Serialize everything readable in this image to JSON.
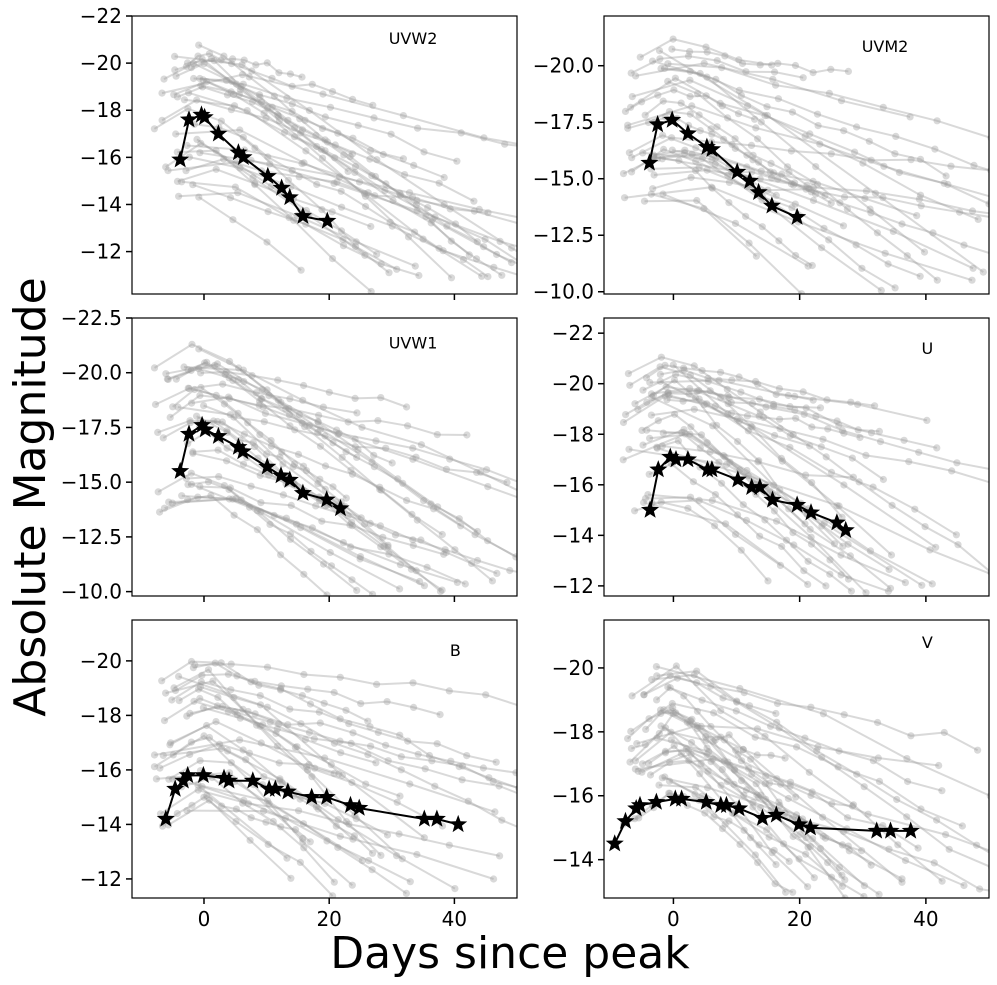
{
  "figure": {
    "ylabel": "Absolute Magnitude",
    "xlabel": "Days since peak"
  },
  "colors": {
    "background_curves": "#9a9a9a",
    "highlight": "#000000",
    "axes": "#000000"
  },
  "chart_data": [
    {
      "type": "line",
      "band": "UVW2",
      "xlim": [
        -11.5,
        50
      ],
      "ylim": [
        -22,
        -10.2
      ],
      "yticks": [
        -22,
        -20,
        -18,
        -16,
        -14,
        -12
      ],
      "ytick_labels": [
        "−22",
        "−20",
        "−18",
        "−16",
        "−14",
        "−12"
      ],
      "xticks": [
        0,
        20,
        40
      ],
      "xtick_labels": [],
      "highlight": {
        "x": [
          -3.8,
          -2.4,
          -0.4,
          0.1,
          2.3,
          5.5,
          6.3,
          10.2,
          12.4,
          13.7,
          15.8,
          19.7
        ],
        "y": [
          -15.9,
          -17.6,
          -17.8,
          -17.7,
          -17.0,
          -16.2,
          -16.0,
          -15.2,
          -14.7,
          -14.3,
          -13.5,
          -13.3
        ]
      }
    },
    {
      "type": "line",
      "band": "UVM2",
      "xlim": [
        -11,
        50
      ],
      "ylim": [
        -22.2,
        -9.9
      ],
      "yticks": [
        -20.0,
        -17.5,
        -15.0,
        -12.5,
        -10.0
      ],
      "ytick_labels": [
        "−20.0",
        "−17.5",
        "−15.0",
        "−12.5",
        "−10.0"
      ],
      "xticks": [
        0,
        20,
        40
      ],
      "xtick_labels": [],
      "highlight": {
        "x": [
          -3.8,
          -2.5,
          -0.2,
          2.3,
          5.3,
          6.1,
          10.1,
          12.1,
          13.5,
          15.6,
          19.6
        ],
        "y": [
          -15.7,
          -17.4,
          -17.6,
          -17.0,
          -16.4,
          -16.3,
          -15.3,
          -14.9,
          -14.4,
          -13.8,
          -13.3
        ]
      }
    },
    {
      "type": "line",
      "band": "UVW1",
      "xlim": [
        -11.5,
        50
      ],
      "ylim": [
        -22.5,
        -9.8
      ],
      "yticks": [
        -22.5,
        -20.0,
        -17.5,
        -15.0,
        -12.5,
        -10.0
      ],
      "ytick_labels": [
        "−22.5",
        "−20.0",
        "−17.5",
        "−15.0",
        "−12.5",
        "−10.0"
      ],
      "xticks": [
        0,
        20,
        40
      ],
      "xtick_labels": [],
      "highlight": {
        "x": [
          -3.8,
          -2.4,
          -0.3,
          0.2,
          2.3,
          5.5,
          6.2,
          10.1,
          12.3,
          13.7,
          15.8,
          19.6,
          21.8
        ],
        "y": [
          -15.5,
          -17.2,
          -17.6,
          -17.4,
          -17.1,
          -16.6,
          -16.4,
          -15.7,
          -15.3,
          -15.1,
          -14.5,
          -14.2,
          -13.8
        ]
      }
    },
    {
      "type": "line",
      "band": "U",
      "xlim": [
        -11,
        50
      ],
      "ylim": [
        -22.6,
        -11.6
      ],
      "yticks": [
        -22,
        -20,
        -18,
        -16,
        -14,
        -12
      ],
      "ytick_labels": [
        "−22",
        "−20",
        "−18",
        "−16",
        "−14",
        "−12"
      ],
      "xticks": [
        0,
        20,
        40
      ],
      "xtick_labels": [],
      "highlight": {
        "x": [
          -3.7,
          -2.4,
          -0.5,
          0.4,
          2.3,
          5.4,
          6.1,
          10.2,
          12.4,
          13.7,
          15.7,
          19.6,
          21.8,
          25.9,
          27.3
        ],
        "y": [
          -15.0,
          -16.6,
          -17.1,
          -17.0,
          -17.0,
          -16.6,
          -16.6,
          -16.2,
          -15.9,
          -15.9,
          -15.4,
          -15.2,
          -14.9,
          -14.5,
          -14.2
        ]
      }
    },
    {
      "type": "line",
      "band": "B",
      "xlim": [
        -11.5,
        50
      ],
      "ylim": [
        -21.5,
        -11.3
      ],
      "yticks": [
        -20,
        -18,
        -16,
        -14,
        -12
      ],
      "ytick_labels": [
        "−20",
        "−18",
        "−16",
        "−14",
        "−12"
      ],
      "xticks": [
        0,
        20,
        40
      ],
      "xtick_labels": [
        "0",
        "20",
        "40"
      ],
      "highlight": {
        "x": [
          -6.1,
          -4.6,
          -3.3,
          -2.6,
          -0.1,
          3.2,
          4.0,
          7.8,
          10.4,
          11.4,
          13.4,
          17.2,
          19.6,
          23.4,
          24.8,
          35.2,
          37.2,
          40.6
        ],
        "y": [
          -14.2,
          -15.3,
          -15.6,
          -15.8,
          -15.8,
          -15.7,
          -15.6,
          -15.6,
          -15.3,
          -15.3,
          -15.2,
          -15.0,
          -15.0,
          -14.7,
          -14.6,
          -14.2,
          -14.2,
          -14.0
        ]
      }
    },
    {
      "type": "line",
      "band": "V",
      "xlim": [
        -11,
        50
      ],
      "ylim": [
        -21.5,
        -12.8
      ],
      "yticks": [
        -20,
        -18,
        -16,
        -14
      ],
      "ytick_labels": [
        "−20",
        "−18",
        "−16",
        "−14"
      ],
      "xticks": [
        0,
        20,
        40
      ],
      "xtick_labels": [
        "0",
        "20",
        "40"
      ],
      "highlight": {
        "x": [
          -9.3,
          -7.6,
          -5.9,
          -5.3,
          -2.7,
          0.3,
          1.3,
          5.2,
          7.5,
          8.4,
          10.4,
          14.1,
          16.3,
          19.9,
          21.7,
          32.2,
          34.4,
          37.6
        ],
        "y": [
          -14.5,
          -15.2,
          -15.6,
          -15.7,
          -15.8,
          -15.9,
          -15.9,
          -15.8,
          -15.7,
          -15.7,
          -15.6,
          -15.3,
          -15.4,
          -15.1,
          -15.0,
          -14.9,
          -14.9,
          -14.9
        ]
      }
    }
  ]
}
